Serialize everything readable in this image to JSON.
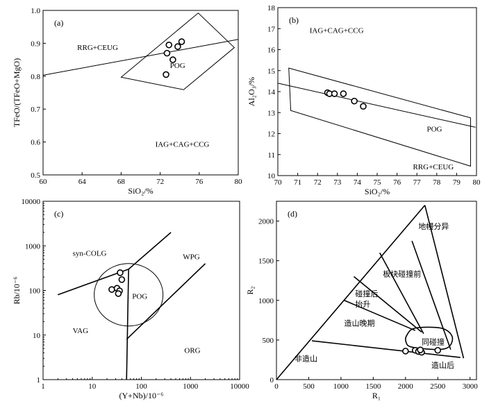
{
  "chart_data": [
    {
      "id": "a",
      "type": "scatter",
      "panel_label": "(a)",
      "xlabel": "SiO₂/%",
      "ylabel": "TFeO/(TFeO+MgO)",
      "xlim": [
        60,
        80
      ],
      "ylim": [
        0.5,
        1.0
      ],
      "xticks": [
        60,
        64,
        68,
        72,
        76,
        80
      ],
      "yticks": [
        0.5,
        0.6,
        0.7,
        0.8,
        0.9,
        1.0
      ],
      "points": [
        [
          72.9,
          0.895
        ],
        [
          74.2,
          0.905
        ],
        [
          73.8,
          0.89
        ],
        [
          72.7,
          0.87
        ],
        [
          73.3,
          0.85
        ],
        [
          72.6,
          0.805
        ]
      ],
      "lines": [
        {
          "name": "boundary",
          "closed": false,
          "pts": [
            [
              60,
              0.803
            ],
            [
              80,
              0.912
            ]
          ]
        },
        {
          "name": "POG",
          "closed": true,
          "pts": [
            [
              68,
              0.797
            ],
            [
              75.9,
              0.992
            ],
            [
              79.6,
              0.887
            ],
            [
              74.4,
              0.759
            ]
          ]
        }
      ],
      "annotations": [
        {
          "text": "RRG+CEUG",
          "at": [
            63.5,
            0.88
          ]
        },
        {
          "text": "POG",
          "at": [
            73.0,
            0.825
          ]
        },
        {
          "text": "IAG+CAG+CCG",
          "at": [
            71.5,
            0.585
          ]
        }
      ]
    },
    {
      "id": "b",
      "type": "scatter",
      "panel_label": "(b)",
      "xlabel": "SiO₂/%",
      "ylabel": "Al₂O₃/%",
      "xlim": [
        70,
        80
      ],
      "ylim": [
        10,
        18
      ],
      "xticks": [
        70,
        71,
        72,
        73,
        74,
        75,
        76,
        77,
        78,
        79,
        80
      ],
      "yticks": [
        10,
        11,
        12,
        13,
        14,
        15,
        16,
        17,
        18
      ],
      "points": [
        [
          72.5,
          13.95
        ],
        [
          72.6,
          13.9
        ],
        [
          72.85,
          13.9
        ],
        [
          73.3,
          13.9
        ],
        [
          73.85,
          13.55
        ],
        [
          74.3,
          13.3
        ]
      ],
      "lines": [
        {
          "name": "boundary",
          "closed": false,
          "pts": [
            [
              70,
              14.4
            ],
            [
              79.95,
              12.3
            ]
          ]
        },
        {
          "name": "POG",
          "closed": true,
          "pts": [
            [
              70.55,
              15.12
            ],
            [
              79.7,
              12.75
            ],
            [
              79.7,
              10.45
            ],
            [
              70.65,
              13.1
            ]
          ]
        }
      ],
      "annotations": [
        {
          "text": "IAG+CAG+CCG",
          "at": [
            71.6,
            16.8
          ]
        },
        {
          "text": "POG",
          "at": [
            77.5,
            12.1
          ]
        },
        {
          "text": "RRG+CEUG",
          "at": [
            76.8,
            10.3
          ]
        }
      ]
    },
    {
      "id": "c",
      "type": "scatter",
      "panel_label": "(c)",
      "xlabel": "(Y+Nb)/10⁻⁶",
      "ylabel": "Rb/10⁻⁶",
      "xscale": "log",
      "yscale": "log",
      "xlim": [
        1,
        10000
      ],
      "ylim": [
        1,
        10000
      ],
      "xticks": [
        1,
        10,
        100,
        1000,
        10000
      ],
      "yticks": [
        1,
        10,
        100,
        1000,
        10000
      ],
      "points": [
        [
          37,
          250
        ],
        [
          40,
          175
        ],
        [
          25,
          105
        ],
        [
          32,
          112
        ],
        [
          36,
          98
        ],
        [
          34,
          85
        ]
      ],
      "lines": [
        {
          "name": "syn-COLG/VAG",
          "closed": false,
          "pts": [
            [
              2,
              80
            ],
            [
              55,
              300
            ]
          ]
        },
        {
          "name": "upper",
          "closed": false,
          "pts": [
            [
              55,
              300
            ],
            [
              400,
              2000
            ]
          ]
        },
        {
          "name": "vertical",
          "closed": false,
          "pts": [
            [
              55,
              300
            ],
            [
              50,
              1
            ]
          ]
        },
        {
          "name": "WPG/ORG",
          "closed": false,
          "pts": [
            [
              50,
              8
            ],
            [
              2000,
              400
            ]
          ]
        }
      ],
      "circle": {
        "center": [
          55,
          80
        ],
        "rx_decades": 0.7,
        "ry_decades": 0.7
      },
      "annotations": [
        {
          "text": "syn-COLG",
          "at": [
            4,
            600
          ]
        },
        {
          "text": "WPG",
          "at": [
            700,
            500
          ]
        },
        {
          "text": "POG",
          "at": [
            65,
            65
          ]
        },
        {
          "text": "VAG",
          "at": [
            4,
            11
          ]
        },
        {
          "text": "ORG",
          "at": [
            750,
            4
          ]
        }
      ]
    },
    {
      "id": "d",
      "type": "scatter",
      "panel_label": "(d)",
      "xlabel": "R₁",
      "ylabel": "R₂",
      "xlim": [
        0,
        3100
      ],
      "ylim": [
        0,
        2250
      ],
      "xticks": [
        0,
        500,
        1000,
        1500,
        2000,
        2500,
        3000
      ],
      "yticks": [
        0,
        500,
        1000,
        1500,
        2000
      ],
      "points": [
        [
          2000,
          360
        ],
        [
          2150,
          370
        ],
        [
          2200,
          355
        ],
        [
          2250,
          345
        ],
        [
          2230,
          375
        ],
        [
          2500,
          370
        ]
      ],
      "lines": [
        {
          "name": "left",
          "closed": false,
          "pts": [
            [
              0,
              0
            ],
            [
              2300,
              2200
            ]
          ]
        },
        {
          "name": "right",
          "closed": false,
          "pts": [
            [
              2300,
              2200
            ],
            [
              2900,
              270
            ]
          ]
        },
        {
          "name": "bottom",
          "closed": false,
          "pts": [
            [
              550,
              490
            ],
            [
              2850,
              280
            ]
          ]
        },
        {
          "name": "l1",
          "closed": false,
          "pts": [
            [
              1200,
              1300
            ],
            [
              2250,
              600
            ]
          ]
        },
        {
          "name": "l2",
          "closed": false,
          "pts": [
            [
              1050,
              1000
            ],
            [
              2150,
              620
            ]
          ]
        },
        {
          "name": "l3",
          "closed": false,
          "pts": [
            [
              1600,
              1600
            ],
            [
              2280,
              580
            ]
          ]
        },
        {
          "name": "l4",
          "closed": false,
          "pts": [
            [
              2100,
              1750
            ],
            [
              2700,
              380
            ]
          ]
        },
        {
          "name": "syn-collision",
          "closed": true,
          "smooth": true,
          "pts": [
            [
              2020,
              560
            ],
            [
              2150,
              650
            ],
            [
              2550,
              650
            ],
            [
              2720,
              550
            ],
            [
              2680,
              420
            ],
            [
              2500,
              380
            ],
            [
              2100,
              410
            ],
            [
              2010,
              470
            ]
          ]
        }
      ],
      "annotations": [
        {
          "text": "地幔分异",
          "at": [
            2200,
            1900
          ]
        },
        {
          "text": "板块碰撞前",
          "at": [
            1650,
            1300
          ]
        },
        {
          "text": "碰撞后",
          "at": [
            1220,
            1050
          ]
        },
        {
          "text": "抬升",
          "at": [
            1220,
            920
          ]
        },
        {
          "text": "造山晚期",
          "at": [
            1050,
            680
          ]
        },
        {
          "text": "同碰撞",
          "at": [
            2250,
            440
          ]
        },
        {
          "text": "非造山",
          "at": [
            280,
            230
          ]
        },
        {
          "text": "造山后",
          "at": [
            2400,
            150
          ]
        }
      ]
    }
  ]
}
